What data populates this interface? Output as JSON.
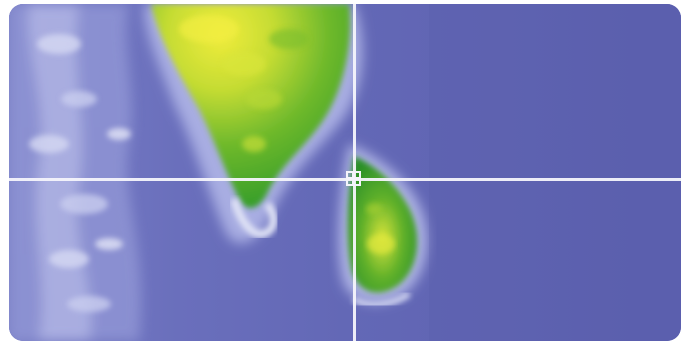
{
  "map": {
    "view": "satellite-elevation",
    "colors": {
      "water": "#5f63b4",
      "deep_water": "#4f55a8",
      "shallow_water": "#9ea4dd",
      "coast_foam": "#d8dcf2",
      "lowland": "#3fa52a",
      "midland": "#8fc92b",
      "highland": "#e8e63a",
      "crosshair": "#f4f4fb"
    },
    "landmasses": [
      "peninsula-landmass",
      "island-landmass"
    ],
    "crosshair": {
      "visible": true,
      "icon": "crosshair-center-icon"
    }
  }
}
